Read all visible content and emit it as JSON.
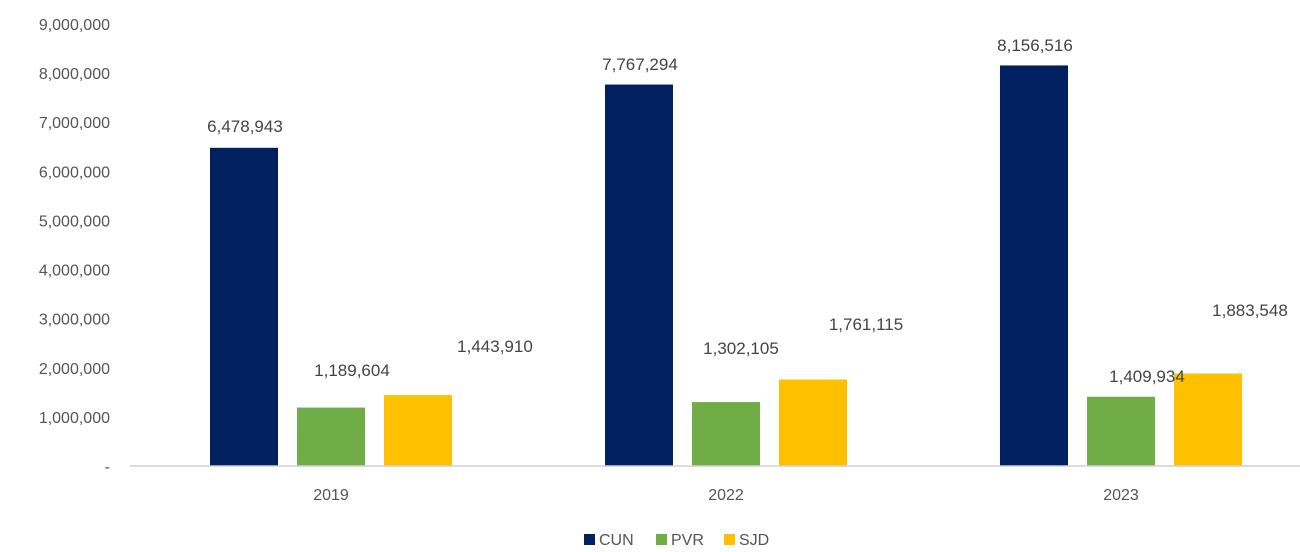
{
  "chart_data": {
    "type": "bar",
    "title": "",
    "xlabel": "",
    "ylabel": "",
    "categories": [
      "2019",
      "2022",
      "2023"
    ],
    "series": [
      {
        "name": "CUN",
        "color": "#002060",
        "values": [
          6478943,
          7767294,
          8156516
        ],
        "labels": [
          "6,478,943",
          "7,767,294",
          "8,156,516"
        ]
      },
      {
        "name": "PVR",
        "color": "#70AD47",
        "values": [
          1189604,
          1302105,
          1409934
        ],
        "labels": [
          "1,189,604",
          "1,302,105",
          "1,409,934"
        ]
      },
      {
        "name": "SJD",
        "color": "#FFC000",
        "values": [
          1443910,
          1761115,
          1883548
        ],
        "labels": [
          "1,443,910",
          "1,761,115",
          "1,883,548"
        ]
      }
    ],
    "ylim": [
      0,
      9000000
    ],
    "yticks": [
      0,
      1000000,
      2000000,
      3000000,
      4000000,
      5000000,
      6000000,
      7000000,
      8000000,
      9000000
    ],
    "ytick_labels": [
      "-",
      "1,000,000",
      "2,000,000",
      "3,000,000",
      "4,000,000",
      "5,000,000",
      "6,000,000",
      "7,000,000",
      "8,000,000",
      "9,000,000"
    ],
    "grid": false,
    "legend": "bottom-center"
  }
}
